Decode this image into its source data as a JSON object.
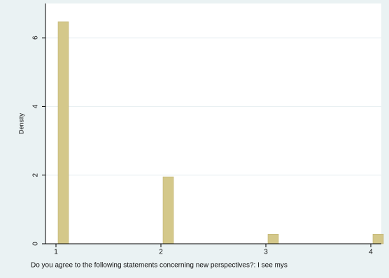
{
  "chart_data": {
    "type": "histogram",
    "x": [
      1,
      2,
      3,
      4
    ],
    "values": [
      6.47,
      1.95,
      0.28,
      0.28
    ],
    "color": "#d4c88a",
    "xlabel": "Do you agree to the following statements concerning new perspectives?: I see mys",
    "ylabel": "Density",
    "xlim": [
      0.9,
      4.1
    ],
    "xticks": [
      1,
      2,
      3,
      4
    ],
    "ylim": [
      0,
      7
    ],
    "yticks": [
      0,
      2,
      4,
      6
    ],
    "grid": true
  }
}
